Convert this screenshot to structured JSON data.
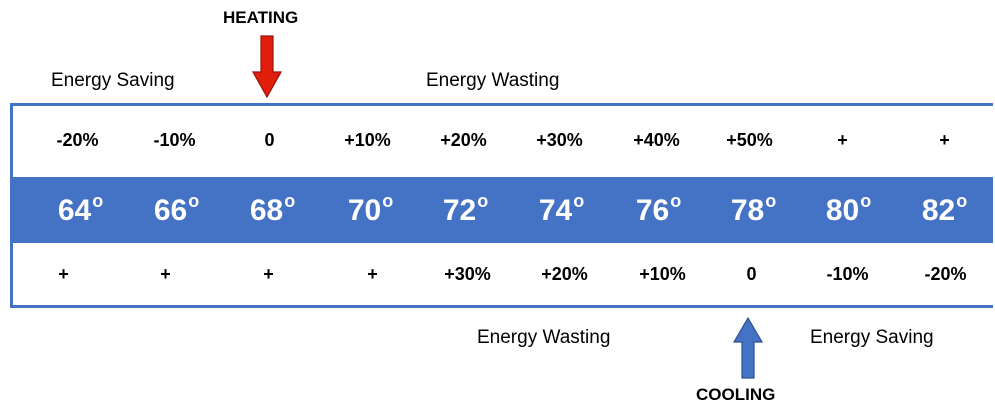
{
  "heating": {
    "label": "HEATING",
    "arrow_color": "#E11D0B",
    "arrow_icon": "arrow-down-icon"
  },
  "cooling": {
    "label": "COOLING",
    "arrow_color": "#4472C4",
    "arrow_icon": "arrow-up-icon"
  },
  "top_labels": {
    "left": "Energy Saving",
    "right": "Energy Wasting"
  },
  "bottom_labels": {
    "left": "Energy Wasting",
    "right": "Energy Saving"
  },
  "heating_percentages": [
    "-20%",
    "-10%",
    "0",
    "+10%",
    "+20%",
    "+30%",
    "+40%",
    "+50%",
    "+",
    "+"
  ],
  "temperatures": [
    "64",
    "66",
    "68",
    "70",
    "72",
    "74",
    "76",
    "78",
    "80",
    "82"
  ],
  "degree_symbol": "o",
  "cooling_percentages": [
    "+",
    "+",
    "+",
    "+",
    "+30%",
    "+20%",
    "+10%",
    "0",
    "-10%",
    "-20%"
  ],
  "colors": {
    "band": "#4472C4",
    "border": "#4472C4",
    "heating_arrow": "#E11D0B",
    "cooling_arrow": "#4472C4"
  }
}
